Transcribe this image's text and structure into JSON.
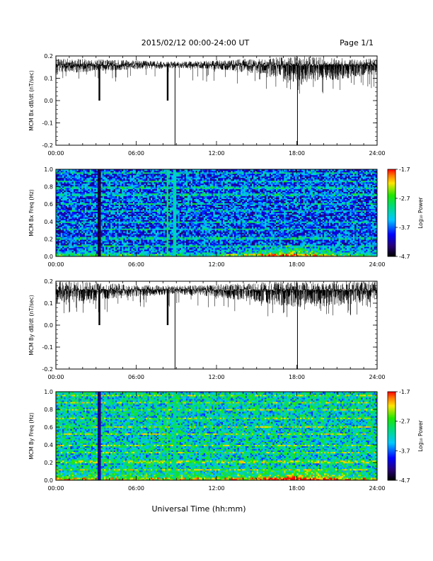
{
  "header": {
    "title": "2015/02/12  00:00-24:00 UT",
    "page": "Page 1/1"
  },
  "chart_data": [
    {
      "type": "line",
      "id": "bx_timeseries",
      "ylabel": "MCM Bx dB/dt (nT/sec)",
      "xlim": [
        0,
        24
      ],
      "ylim": [
        -0.2,
        0.2
      ],
      "xticks": [
        "00:00",
        "06:00",
        "12:00",
        "18:00",
        "24:00"
      ],
      "yticks": [
        "0.2",
        "0.1",
        "0.0",
        "-0.1",
        "-0.2"
      ],
      "baseline": 0.16,
      "envelope_hours": [
        0,
        3,
        6,
        9,
        12,
        15,
        18,
        21,
        24
      ],
      "envelope_low": [
        0.12,
        0.13,
        0.14,
        0.145,
        0.14,
        0.12,
        0.08,
        0.09,
        0.12
      ],
      "envelope_high": [
        0.19,
        0.185,
        0.18,
        0.175,
        0.18,
        0.19,
        0.2,
        0.19,
        0.19
      ],
      "spikes": [
        {
          "t": 3.25,
          "y": 0.0
        },
        {
          "t": 8.35,
          "y": 0.0
        },
        {
          "t": 8.9,
          "y": -0.2
        },
        {
          "t": 18.05,
          "y": -0.2
        }
      ]
    },
    {
      "type": "heatmap",
      "id": "bx_spectrogram",
      "ylabel": "MCM Bx Freq (Hz)",
      "xlim": [
        0,
        24
      ],
      "ylim": [
        0,
        1.0
      ],
      "xticks": [
        "00:00",
        "06:00",
        "12:00",
        "18:00",
        "24:00"
      ],
      "yticks": [
        "1.0",
        "0.8",
        "0.6",
        "0.4",
        "0.2",
        "0.0"
      ],
      "colorbar": {
        "label": "Log₁₀ Power",
        "min": -4.7,
        "max": -1.7,
        "ticks": [
          "-1.7",
          "-2.7",
          "-3.7",
          "-4.7"
        ]
      },
      "background_level": -3.8,
      "low_freq_enhancement": {
        "t_start": 11,
        "t_end": 22,
        "peak_t": 17.5,
        "peak_level": -2.4
      },
      "harmonic_lines_hz": [
        0.12,
        0.21,
        0.31,
        0.39,
        0.52,
        0.61,
        0.71,
        0.79,
        0.87,
        0.96
      ],
      "vertical_features": [
        {
          "t": 3.25,
          "level": -4.5
        },
        {
          "t": 8.35,
          "level": -2.7
        },
        {
          "t": 8.9,
          "level": -3.2
        }
      ]
    },
    {
      "type": "line",
      "id": "by_timeseries",
      "ylabel": "MCM By dB/dt (nT/sec)",
      "xlim": [
        0,
        24
      ],
      "ylim": [
        -0.2,
        0.2
      ],
      "xticks": [
        "00:00",
        "06:00",
        "12:00",
        "18:00",
        "24:00"
      ],
      "yticks": [
        "0.2",
        "0.1",
        "0.0",
        "-0.1",
        "-0.2"
      ],
      "baseline": 0.16,
      "envelope_hours": [
        0,
        3,
        6,
        9,
        12,
        15,
        18,
        21,
        24
      ],
      "envelope_low": [
        0.1,
        0.11,
        0.13,
        0.14,
        0.13,
        0.1,
        0.08,
        0.09,
        0.11
      ],
      "envelope_high": [
        0.2,
        0.195,
        0.185,
        0.18,
        0.185,
        0.195,
        0.2,
        0.2,
        0.2
      ],
      "spikes": [
        {
          "t": 3.25,
          "y": 0.0
        },
        {
          "t": 8.35,
          "y": 0.0
        },
        {
          "t": 8.9,
          "y": -0.2
        },
        {
          "t": 18.05,
          "y": -0.2
        }
      ]
    },
    {
      "type": "heatmap",
      "id": "by_spectrogram",
      "ylabel": "MCM By Freq (Hz)",
      "xlim": [
        0,
        24
      ],
      "ylim": [
        0,
        1.0
      ],
      "xticks": [
        "00:00",
        "06:00",
        "12:00",
        "18:00",
        "24:00"
      ],
      "yticks": [
        "1.0",
        "0.8",
        "0.6",
        "0.4",
        "0.2",
        "0.0"
      ],
      "colorbar": {
        "label": "Log₁₀ Power",
        "min": -4.7,
        "max": -1.7,
        "ticks": [
          "-1.7",
          "-2.7",
          "-3.7",
          "-4.7"
        ]
      },
      "background_level": -3.2,
      "low_freq_enhancement": {
        "t_start": 11,
        "t_end": 22,
        "peak_t": 18,
        "peak_level": -2.3
      },
      "harmonic_lines_hz": [
        0.12,
        0.21,
        0.31,
        0.4,
        0.52,
        0.6,
        0.7,
        0.8,
        0.88,
        0.96
      ],
      "vertical_features": [
        {
          "t": 3.25,
          "level": -4.3
        },
        {
          "t": 8.35,
          "level": -2.6
        },
        {
          "t": 8.9,
          "level": -3.0
        }
      ]
    }
  ],
  "xlabel": "Universal Time (hh:mm)"
}
